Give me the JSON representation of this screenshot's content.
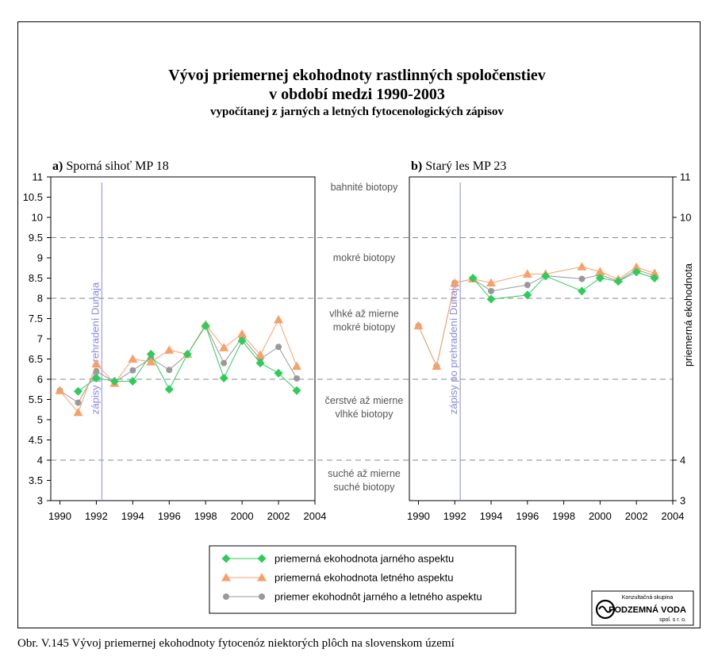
{
  "title": {
    "line1": "Vývoj priemernej ekohodnoty rastlinných spoločenstiev",
    "line2": "v období medzi 1990-2003",
    "line3": "vypočítanej z jarných a letných fytocenologických zápisov"
  },
  "caption": "Obr. V.145 Vývoj priemernej ekohodnoty fytocenóz niektorých plôch na slovenskom území",
  "logo": {
    "line1": "Konzultačná skupina",
    "line2": "PODZEMNÁ VODA",
    "line3": "spol. s r. o."
  },
  "colors": {
    "spring": "#2ecc5a",
    "summer": "#f7a06a",
    "mean": "#999999",
    "marker": "#8888dd"
  },
  "chart_data": [
    {
      "type": "line",
      "panel_label": "a)",
      "panel_name": "Sporná sihoť MP 18",
      "xlim": [
        1989.5,
        2004
      ],
      "ylim": [
        3,
        11
      ],
      "xticks": [
        "1990",
        "1992",
        "1994",
        "1996",
        "1998",
        "2000",
        "2002",
        "2004"
      ],
      "yticks": [
        "3",
        "3.5",
        "4",
        "4.5",
        "5",
        "5.5",
        "6",
        "6.5",
        "7",
        "7.5",
        "8",
        "8.5",
        "9",
        "9.5",
        "10",
        "10.5",
        "11"
      ],
      "marker_line": {
        "x": 1992.3,
        "label": "zápisy po prehradení Dunaja"
      },
      "series": [
        {
          "name": "priemerná ekohodnota jarného aspektu",
          "x": [
            1991,
            1992,
            1993,
            1994,
            1995,
            1996,
            1997,
            1998,
            1999,
            2000,
            2001,
            2002,
            2003
          ],
          "y": [
            5.7,
            6.03,
            5.95,
            5.95,
            6.62,
            5.75,
            6.62,
            7.32,
            6.03,
            6.95,
            6.4,
            6.15,
            5.72
          ]
        },
        {
          "name": "priemerná ekohodnota letného aspektu",
          "x": [
            1990,
            1991,
            1992,
            1993,
            1994,
            1995,
            1996,
            1997,
            1998,
            1999,
            2000,
            2001,
            2002,
            2003
          ],
          "y": [
            5.72,
            5.18,
            6.38,
            5.9,
            6.5,
            6.43,
            6.72,
            6.62,
            7.35,
            6.78,
            7.12,
            6.6,
            7.47,
            6.32
          ]
        },
        {
          "name": "priemer ekohodnôt jarného a letného aspektu",
          "x": [
            1990,
            1991,
            1992,
            1993,
            1994,
            1995,
            1996,
            1997,
            1998,
            1999,
            2000,
            2001,
            2002,
            2003
          ],
          "y": [
            5.72,
            5.42,
            6.2,
            5.93,
            6.22,
            6.52,
            6.23,
            6.62,
            7.33,
            6.4,
            7.03,
            6.5,
            6.8,
            6.02
          ]
        }
      ]
    },
    {
      "type": "line",
      "panel_label": "b)",
      "panel_name": "Starý les MP 23",
      "xlim": [
        1989.5,
        2004
      ],
      "ylim": [
        3,
        11
      ],
      "xticks": [
        "1990",
        "1992",
        "1994",
        "1996",
        "1998",
        "2000",
        "2002",
        "2004"
      ],
      "yticks": [
        "3",
        "4",
        "10",
        "11"
      ],
      "ylabel": "priemerná ekohodnota",
      "marker_line": {
        "x": 1992.3,
        "label": "zápisy po prehradení Dunaja"
      },
      "series": [
        {
          "name": "priemerná ekohodnota jarného aspektu",
          "x": [
            1993,
            1994,
            1996,
            1997,
            1999,
            2000,
            2001,
            2002,
            2003
          ],
          "y": [
            8.5,
            7.98,
            8.08,
            8.55,
            8.18,
            8.5,
            8.42,
            8.65,
            8.5
          ]
        },
        {
          "name": "priemerná ekohodnota letného aspektu",
          "x": [
            1990,
            1991,
            1992,
            1993,
            1994,
            1996,
            1997,
            1999,
            2000,
            2001,
            2002,
            2003
          ],
          "y": [
            7.32,
            6.32,
            8.38,
            8.48,
            8.38,
            8.6,
            8.6,
            8.78,
            8.66,
            8.47,
            8.77,
            8.62
          ]
        },
        {
          "name": "priemer ekohodnôt jarného a letného aspektu",
          "x": [
            1990,
            1991,
            1992,
            1993,
            1994,
            1996,
            1997,
            1999,
            2000,
            2001,
            2002,
            2003
          ],
          "y": [
            7.32,
            6.32,
            8.38,
            8.48,
            8.18,
            8.33,
            8.56,
            8.48,
            8.58,
            8.43,
            8.71,
            8.56
          ]
        }
      ]
    }
  ],
  "zones": [
    {
      "lines": [
        "bahnité biotopy"
      ]
    },
    {
      "lines": [
        "mokré biotopy"
      ]
    },
    {
      "lines": [
        "vlhké až mierne",
        "mokré biotopy"
      ]
    },
    {
      "lines": [
        "čerstvé až mierne",
        "vlhké biotopy"
      ]
    },
    {
      "lines": [
        "suché až mierne",
        "suché biotopy"
      ]
    }
  ],
  "legend": [
    "priemerná ekohodnota jarného aspektu",
    "priemerná ekohodnota letného aspektu",
    "priemer ekohodnôt jarného a letného aspektu"
  ]
}
